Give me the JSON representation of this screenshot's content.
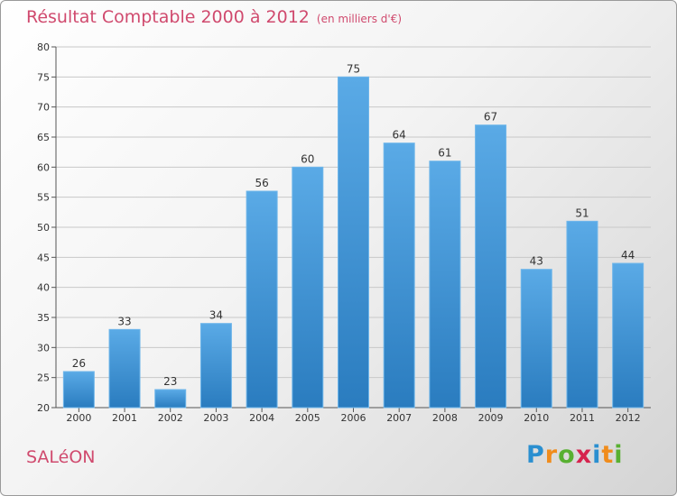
{
  "chart_data": {
    "type": "bar",
    "title": "Résultat Comptable 2000 à 2012",
    "subtitle": "(en milliers d'€)",
    "categories": [
      "2000",
      "2001",
      "2002",
      "2003",
      "2004",
      "2005",
      "2006",
      "2007",
      "2008",
      "2009",
      "2010",
      "2011",
      "2012"
    ],
    "values": [
      26,
      33,
      23,
      34,
      56,
      60,
      75,
      64,
      61,
      67,
      43,
      51,
      44
    ],
    "xlabel": "",
    "ylabel": "",
    "ylim": [
      20,
      80
    ],
    "yticks": [
      20,
      25,
      30,
      35,
      40,
      45,
      50,
      55,
      60,
      65,
      70,
      75,
      80
    ],
    "grid": true
  },
  "footer": {
    "town": "SALéON",
    "brand": "Proxiti",
    "brand_letters": [
      "P",
      "r",
      "o",
      "x",
      "i",
      "t",
      "i"
    ],
    "brand_colors": [
      "#2a8fd0",
      "#f08c1c",
      "#58b031",
      "#d6234d",
      "#2a8fd0",
      "#f08c1c",
      "#58b031"
    ]
  },
  "colors": {
    "bar_top": "#5aaae6",
    "bar_bottom": "#2a7cbf",
    "accent": "#d04a6e",
    "grid": "#c8c8c8"
  }
}
